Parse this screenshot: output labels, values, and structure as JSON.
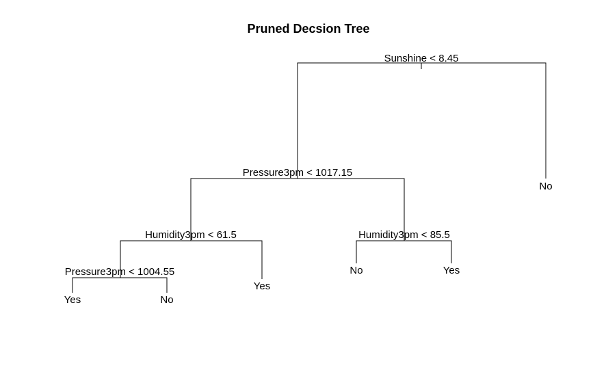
{
  "title": "Pruned Decsion Tree",
  "tree": {
    "split": "Sunshine < 8.45",
    "left": {
      "split": "Pressure3pm < 1017.15",
      "left": {
        "split": "Humidity3pm < 61.5",
        "left": {
          "split": "Pressure3pm < 1004.55",
          "left": {
            "leaf": "Yes"
          },
          "right": {
            "leaf": "No"
          }
        },
        "right": {
          "leaf": "Yes"
        }
      },
      "right": {
        "split": "Humidity3pm < 85.5",
        "left": {
          "leaf": "No"
        },
        "right": {
          "leaf": "Yes"
        }
      }
    },
    "right": {
      "leaf": "No"
    }
  }
}
